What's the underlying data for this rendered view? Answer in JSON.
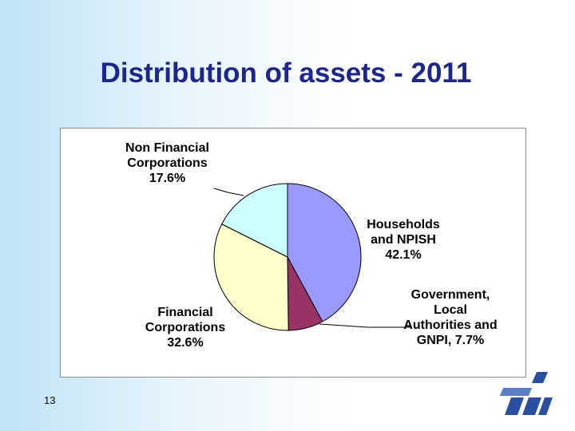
{
  "chart_data": {
    "type": "pie",
    "title": "Distribution of assets - 2011",
    "categories": [
      "Households and NPISH",
      "Government, Local Authorities and GNPI,",
      "Financial Corporations",
      "Non Financial Corporations"
    ],
    "values": [
      42.1,
      7.7,
      32.6,
      17.6
    ],
    "value_labels": [
      "42.1%",
      "7.7%",
      "32.6%",
      "17.6%"
    ],
    "colors": [
      "#9999ff",
      "#993366",
      "#ffffcc",
      "#ccffff"
    ]
  },
  "page_number": "13"
}
